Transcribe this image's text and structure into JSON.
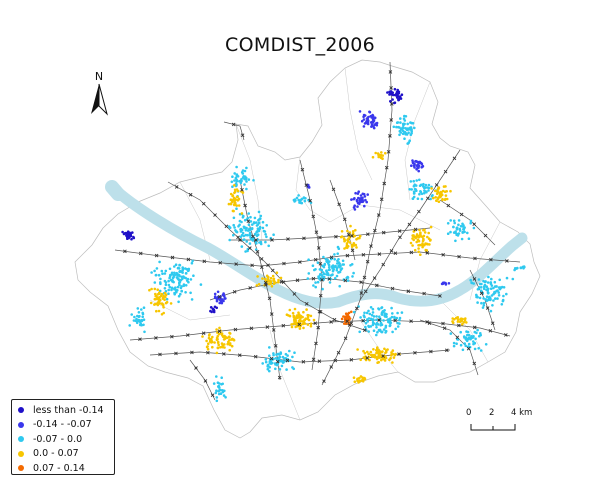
{
  "map": {
    "title": "COMDIST_2006",
    "north_label": "N",
    "legend": [
      {
        "label": "less than -0.14",
        "color": "#1f10c8"
      },
      {
        "label": "-0.14 - -0.07",
        "color": "#3a37ec"
      },
      {
        "label": "-0.07 - 0.0",
        "color": "#2fc9ef"
      },
      {
        "label": "0.0 - 0.07",
        "color": "#f7c600"
      },
      {
        "label": "0.07 - 0.14",
        "color": "#f46a00"
      }
    ],
    "scale": {
      "ticks": [
        "0",
        "2",
        "4 km"
      ]
    },
    "colors": {
      "river": "#bde0ea",
      "boundary": "#bdbdbd",
      "network": "#555555",
      "station": "#333333"
    }
  }
}
